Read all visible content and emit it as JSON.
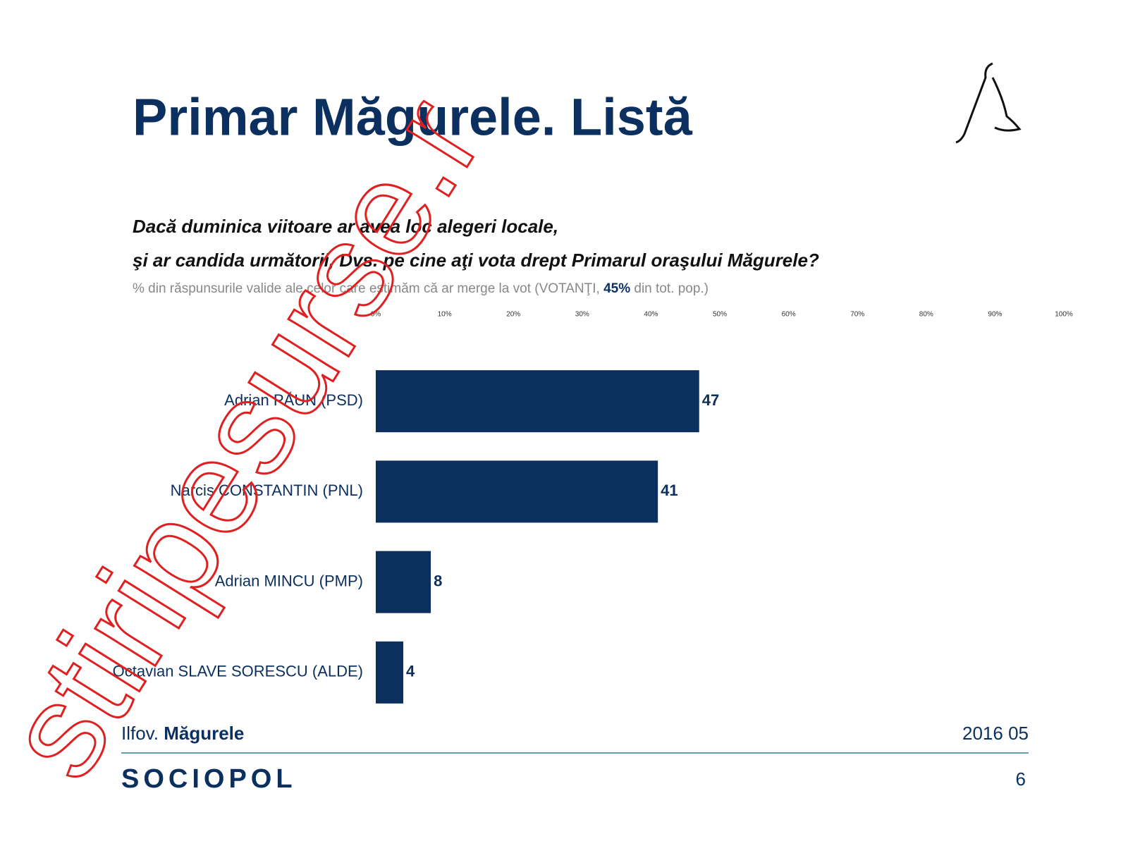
{
  "chart_data": {
    "type": "bar",
    "orientation": "horizontal",
    "title": "Primar Măgurele. Listă",
    "question": [
      "Dacă duminica viitoare ar avea loc alegeri locale,",
      "şi ar candida următorii, Dvs. pe cine aţi vota drept Primarul oraşului Măgurele?"
    ],
    "note": [
      "% din răspunsurile valide ale celor care estimăm că ar merge la vot (VOTANŢI, ",
      "45%",
      " din tot. pop.)"
    ],
    "categories": [
      "Adrian PĂUN (PSD)",
      "Narcis CONSTANTIN (PNL)",
      "Adrian MINCU (PMP)",
      "Octavian SLAVE SORESCU (ALDE)"
    ],
    "values": [
      47,
      41,
      8,
      4
    ],
    "color": "#0b2f5e",
    "xlim": [
      0,
      100
    ],
    "xticks": [
      {
        "value": 0,
        "label": "0%"
      },
      {
        "value": 10,
        "label": "10%"
      },
      {
        "value": 20,
        "label": "20%"
      },
      {
        "value": 30,
        "label": "30%"
      },
      {
        "value": 40,
        "label": "40%"
      },
      {
        "value": 50,
        "label": "50%"
      },
      {
        "value": 60,
        "label": "60%"
      },
      {
        "value": 70,
        "label": "70%"
      },
      {
        "value": 80,
        "label": "80%"
      },
      {
        "value": 90,
        "label": "90%"
      },
      {
        "value": 100,
        "label": "100%"
      }
    ]
  },
  "footer": {
    "region": "Ilfov.",
    "place": "Măgurele",
    "date": "2016 05",
    "brand": "SOCIOPOL",
    "page": "6"
  },
  "watermark": "stiripesurse.r"
}
